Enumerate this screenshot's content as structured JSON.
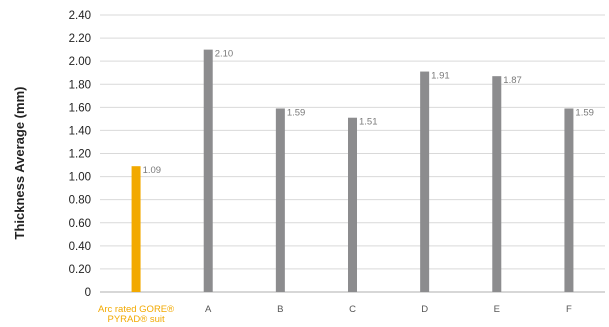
{
  "chart_data": {
    "type": "bar",
    "xlabel": "",
    "ylabel": "Thickness Average (mm)",
    "ylim": [
      0,
      2.4
    ],
    "yticks": [
      "0",
      "0.20",
      "0.40",
      "0.60",
      "0.80",
      "1.00",
      "1.20",
      "1.40",
      "1.60",
      "1.80",
      "2.00",
      "2.20",
      "2.40"
    ],
    "grid": true,
    "categories": [
      {
        "lines": [
          "Arc rated GORE®",
          "PYRAD® suit"
        ],
        "highlight": true
      },
      {
        "lines": [
          "A"
        ],
        "highlight": false
      },
      {
        "lines": [
          "B"
        ],
        "highlight": false
      },
      {
        "lines": [
          "C"
        ],
        "highlight": false
      },
      {
        "lines": [
          "D"
        ],
        "highlight": false
      },
      {
        "lines": [
          "E"
        ],
        "highlight": false
      },
      {
        "lines": [
          "F"
        ],
        "highlight": false
      }
    ],
    "values": [
      1.09,
      2.1,
      1.59,
      1.51,
      1.91,
      1.87,
      1.59
    ],
    "value_labels": [
      "1.09",
      "2.10",
      "1.59",
      "1.51",
      "1.91",
      "1.87",
      "1.59"
    ],
    "colors": {
      "highlight": "#f2a900",
      "bar": "#8c8c8e",
      "grid": "#d9d9d9",
      "axis": "#bfbfbf"
    }
  }
}
